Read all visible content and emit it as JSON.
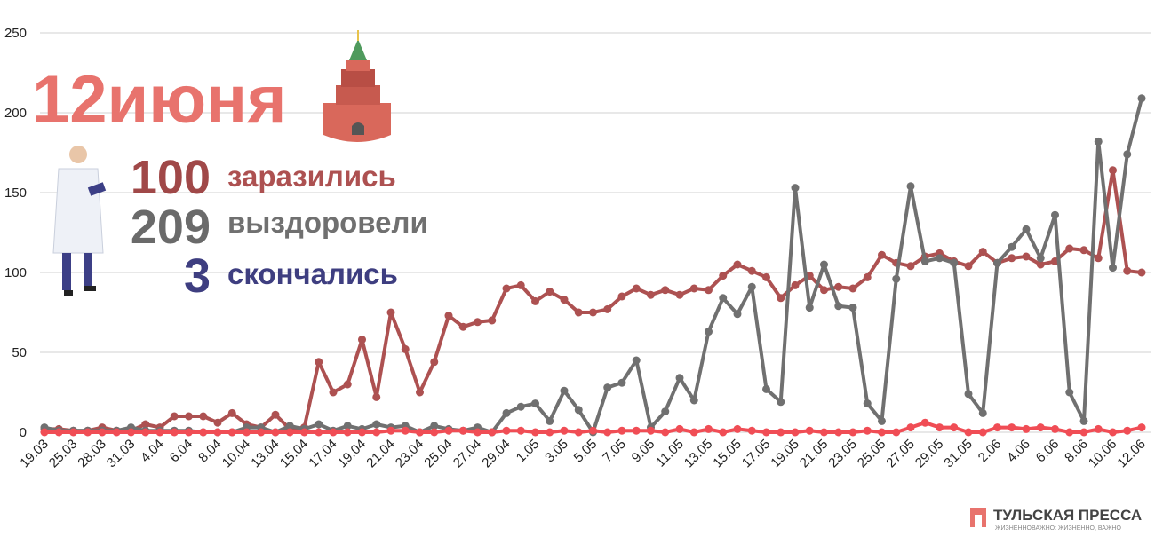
{
  "chart_data": {
    "type": "line",
    "title": "12июня",
    "categories": [
      "19.03",
      null,
      "25.03",
      null,
      "28.03",
      null,
      "31.03",
      null,
      "4.04",
      null,
      "6.04",
      null,
      "8.04",
      null,
      "10.04",
      null,
      "13.04",
      null,
      "15.04",
      null,
      "17.04",
      null,
      "19.04",
      null,
      "21.04",
      null,
      "23.04",
      null,
      "25.04",
      null,
      "27.04",
      null,
      "29.04",
      null,
      "1.05",
      null,
      "3.05",
      null,
      "5.05",
      null,
      "7.05",
      null,
      "9.05",
      null,
      "11.05",
      null,
      "13.05",
      null,
      "15.05",
      null,
      "17.05",
      null,
      "19.05",
      null,
      "21.05",
      null,
      "23.05",
      null,
      "25.05",
      null,
      "27.05",
      null,
      "29.05",
      null,
      "31.05",
      null,
      "2.06",
      null,
      "4.06",
      null,
      "6.06",
      null,
      "8.06",
      null,
      "10.06",
      null,
      "12.06"
    ],
    "series": [
      {
        "name": "заразились",
        "color": "#ad5151",
        "values": [
          2,
          2,
          1,
          1,
          3,
          1,
          1,
          5,
          3,
          10,
          10,
          10,
          6,
          12,
          5,
          3,
          11,
          2,
          3,
          44,
          25,
          30,
          58,
          22,
          75,
          52,
          25,
          44,
          73,
          66,
          69,
          70,
          90,
          92,
          82,
          88,
          83,
          75,
          75,
          77,
          85,
          90,
          86,
          89,
          86,
          90,
          89,
          98,
          105,
          101,
          97,
          84,
          92,
          98,
          89,
          91,
          90,
          97,
          111,
          106,
          104,
          110,
          112,
          107,
          104,
          113,
          106,
          109,
          110,
          105,
          107,
          115,
          114,
          109,
          164,
          101,
          100
        ]
      },
      {
        "name": "выздоровели",
        "color": "#707070",
        "values": [
          3,
          1,
          1,
          1,
          1,
          1,
          3,
          1,
          1,
          1,
          1,
          0,
          0,
          0,
          3,
          3,
          0,
          4,
          2,
          5,
          1,
          4,
          2,
          5,
          3,
          4,
          0,
          4,
          2,
          1,
          3,
          0,
          12,
          16,
          18,
          7,
          26,
          14,
          0,
          28,
          31,
          45,
          3,
          13,
          34,
          20,
          63,
          84,
          74,
          91,
          27,
          19,
          153,
          78,
          105,
          79,
          78,
          18,
          7,
          96,
          154,
          107,
          109,
          106,
          24,
          12,
          106,
          116,
          127,
          109,
          136,
          25,
          7,
          182,
          103,
          174,
          209
        ]
      },
      {
        "name": "скончались",
        "color": "#f04d55",
        "values": [
          0,
          0,
          0,
          0,
          0,
          0,
          0,
          0,
          0,
          0,
          0,
          0,
          0,
          0,
          0,
          0,
          0,
          0,
          0,
          0,
          0,
          0,
          0,
          0,
          1,
          1,
          0,
          0,
          1,
          1,
          0,
          0,
          1,
          1,
          0,
          0,
          1,
          0,
          1,
          0,
          1,
          1,
          1,
          0,
          2,
          0,
          2,
          0,
          2,
          1,
          0,
          0,
          0,
          1,
          0,
          0,
          0,
          1,
          0,
          0,
          3,
          6,
          3,
          3,
          0,
          0,
          3,
          3,
          2,
          3,
          2,
          0,
          0,
          2,
          0,
          1,
          3
        ]
      }
    ],
    "ylim": [
      0,
      250
    ],
    "yticks": [
      0,
      50,
      100,
      150,
      200,
      250
    ],
    "grid": true
  },
  "logo": {
    "name": "ТУЛЬСКАЯ ПРЕССА",
    "tagline": "ЖИЗНЕННОВАЖНО: ЖИЗНЕННО, ВАЖНО"
  }
}
